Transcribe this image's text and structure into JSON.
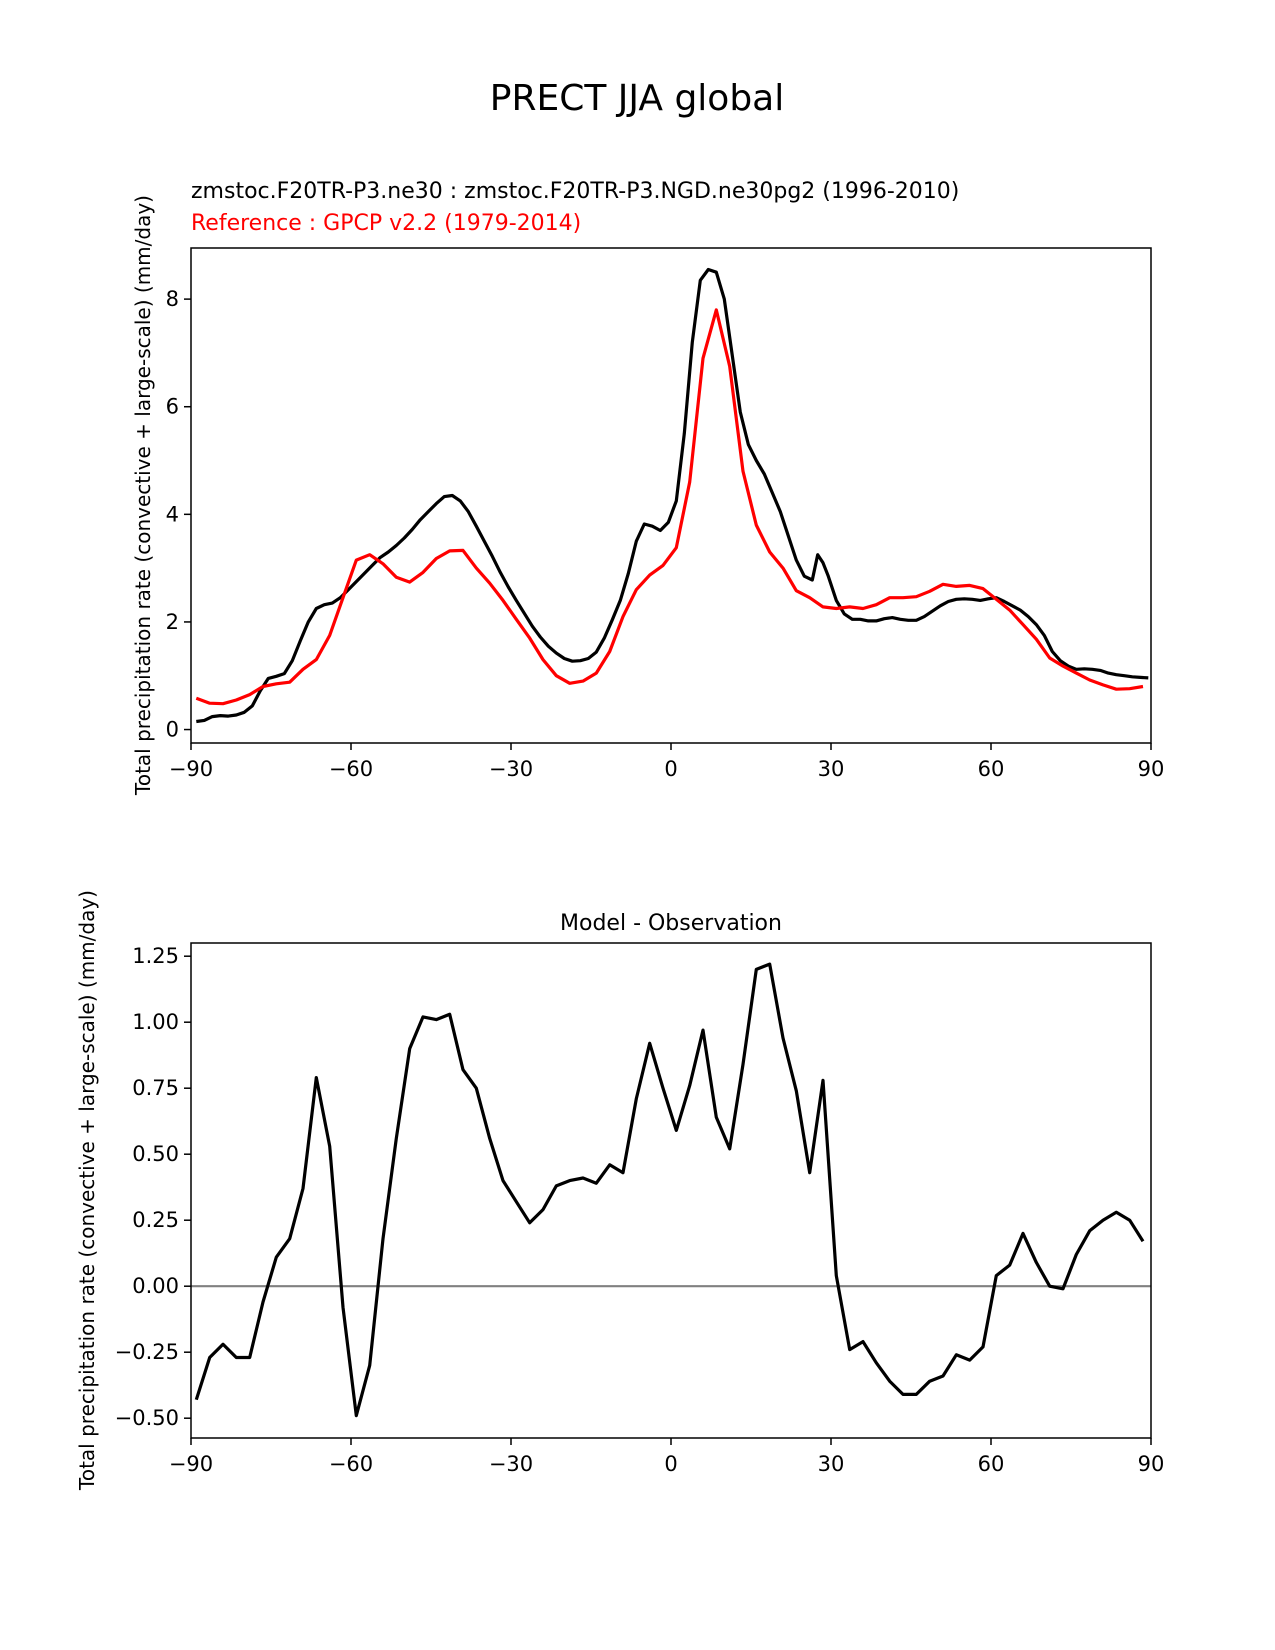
{
  "figure": {
    "title": "PRECT JJA global"
  },
  "colors": {
    "model": "#000000",
    "reference": "#ff0000",
    "zero_line": "#808080"
  },
  "chart_data": [
    {
      "type": "line",
      "title_model": "zmstoc.F20TR-P3.ne30 : zmstoc.F20TR-P3.NGD.ne30pg2 (1996-2010)",
      "title_reference": "Reference : GPCP v2.2 (1979-2014)",
      "xlabel": "",
      "ylabel": "Total precipitation rate (convective + large-scale) (mm/day)",
      "xlim": [
        -90,
        90
      ],
      "ylim": [
        -0.25,
        8.95
      ],
      "xticks": [
        -90,
        -60,
        -30,
        0,
        30,
        60,
        90
      ],
      "xtick_labels": [
        "−90",
        "−60",
        "−30",
        "0",
        "30",
        "60",
        "90"
      ],
      "yticks": [
        0,
        2,
        4,
        6,
        8
      ],
      "ytick_labels": [
        "0",
        "2",
        "4",
        "6",
        "8"
      ],
      "grid": false,
      "series": [
        {
          "x": [
            -89,
            -87.5,
            -86,
            -84.5,
            -83,
            -81.5,
            -80,
            -78.5,
            -77,
            -75.5,
            -74,
            -72.5,
            -71,
            -69.5,
            -68,
            -66.5,
            -65,
            -63.5,
            -62,
            -60.5,
            -59,
            -57.5,
            -56,
            -54.5,
            -53,
            -51.5,
            -50,
            -48.5,
            -47,
            -45.5,
            -44,
            -42.5,
            -41,
            -39.5,
            -38,
            -36.5,
            -35,
            -33.5,
            -32,
            -30.5,
            -29,
            -27.5,
            -26,
            -24.5,
            -23,
            -21.5,
            -20,
            -18.5,
            -17,
            -15.5,
            -14,
            -12.5,
            -11,
            -9.5,
            -8,
            -6.5,
            -5,
            -3.5,
            -2,
            -0.5,
            1,
            2.5,
            4,
            5.5,
            7,
            8.5,
            10,
            11.5,
            13,
            14.5,
            16,
            17.5,
            19,
            20.5,
            22,
            23.5,
            25,
            26.5,
            27.5,
            28.5,
            29.5,
            31,
            32.5,
            34,
            35.5,
            37,
            38.5,
            40,
            41.5,
            43,
            44.5,
            46,
            47.5,
            49,
            50.5,
            52,
            53.5,
            55,
            56.5,
            58,
            59.5,
            61,
            62.5,
            64,
            65.5,
            67,
            68.5,
            70,
            71.5,
            73,
            74.5,
            76,
            77.5,
            79,
            80.5,
            82,
            83.5,
            85,
            86.5,
            88,
            89.5
          ],
          "y": [
            0.15,
            0.17,
            0.24,
            0.26,
            0.25,
            0.27,
            0.32,
            0.44,
            0.72,
            0.95,
            0.99,
            1.04,
            1.28,
            1.65,
            2.0,
            2.25,
            2.32,
            2.35,
            2.45,
            2.6,
            2.75,
            2.9,
            3.05,
            3.2,
            3.3,
            3.42,
            3.56,
            3.72,
            3.9,
            4.05,
            4.2,
            4.33,
            4.35,
            4.25,
            4.05,
            3.78,
            3.5,
            3.22,
            2.92,
            2.65,
            2.4,
            2.16,
            1.92,
            1.72,
            1.55,
            1.42,
            1.32,
            1.27,
            1.28,
            1.32,
            1.44,
            1.7,
            2.04,
            2.4,
            2.9,
            3.5,
            3.82,
            3.78,
            3.7,
            3.85,
            4.25,
            5.5,
            7.2,
            8.35,
            8.55,
            8.5,
            8.0,
            6.95,
            5.9,
            5.3,
            5.0,
            4.75,
            4.4,
            4.05,
            3.6,
            3.15,
            2.85,
            2.78,
            3.25,
            3.1,
            2.85,
            2.4,
            2.15,
            2.05,
            2.05,
            2.02,
            2.02,
            2.06,
            2.08,
            2.05,
            2.03,
            2.03,
            2.1,
            2.2,
            2.3,
            2.38,
            2.42,
            2.43,
            2.42,
            2.4,
            2.43,
            2.45,
            2.38,
            2.3,
            2.22,
            2.1,
            1.95,
            1.75,
            1.45,
            1.28,
            1.18,
            1.12,
            1.13,
            1.12,
            1.1,
            1.05,
            1.02,
            1.0,
            0.98,
            0.97,
            0.96
          ]
        },
        {
          "x": [
            -89,
            -86.5,
            -84,
            -81.5,
            -79,
            -76.5,
            -74,
            -71.5,
            -69,
            -66.5,
            -64,
            -61.5,
            -59,
            -56.5,
            -54,
            -51.5,
            -49,
            -46.5,
            -44,
            -41.5,
            -39,
            -36.5,
            -34,
            -31.5,
            -29,
            -26.5,
            -24,
            -21.5,
            -19,
            -16.5,
            -14,
            -11.5,
            -9,
            -6.5,
            -4,
            -1.5,
            1,
            3.5,
            6,
            8.5,
            11,
            13.5,
            16,
            18.5,
            21,
            23.5,
            26,
            28.5,
            31,
            33.5,
            36,
            38.5,
            41,
            43.5,
            46,
            48.5,
            51,
            53.5,
            56,
            58.5,
            61,
            63.5,
            66,
            68.5,
            71,
            73.5,
            76,
            78.5,
            81,
            83.5,
            86,
            88.5
          ],
          "y": [
            0.58,
            0.49,
            0.48,
            0.55,
            0.65,
            0.8,
            0.85,
            0.88,
            1.12,
            1.3,
            1.75,
            2.45,
            3.15,
            3.25,
            3.08,
            2.83,
            2.74,
            2.92,
            3.18,
            3.32,
            3.33,
            3.0,
            2.72,
            2.4,
            2.05,
            1.7,
            1.3,
            1.0,
            0.86,
            0.9,
            1.05,
            1.45,
            2.1,
            2.6,
            2.87,
            3.05,
            3.38,
            4.6,
            6.9,
            7.8,
            6.75,
            4.8,
            3.8,
            3.3,
            3.0,
            2.58,
            2.45,
            2.28,
            2.25,
            2.28,
            2.25,
            2.32,
            2.45,
            2.45,
            2.47,
            2.57,
            2.7,
            2.66,
            2.68,
            2.62,
            2.42,
            2.22,
            1.95,
            1.68,
            1.33,
            1.18,
            1.05,
            0.92,
            0.83,
            0.75,
            0.76,
            0.8
          ]
        }
      ]
    },
    {
      "type": "line",
      "title": "Model - Observation",
      "xlabel": "",
      "ylabel": "Total precipitation rate (convective + large-scale) (mm/day)",
      "xlim": [
        -90,
        90
      ],
      "ylim": [
        -0.575,
        1.3
      ],
      "xticks": [
        -90,
        -60,
        -30,
        0,
        30,
        60,
        90
      ],
      "xtick_labels": [
        "−90",
        "−60",
        "−30",
        "0",
        "30",
        "60",
        "90"
      ],
      "yticks": [
        -0.5,
        -0.25,
        0,
        0.25,
        0.5,
        0.75,
        1.0,
        1.25
      ],
      "ytick_labels": [
        "−0.50",
        "−0.25",
        "0.00",
        "0.25",
        "0.50",
        "0.75",
        "1.00",
        "1.25"
      ],
      "zero_line": 0,
      "grid": false,
      "series": [
        {
          "x": [
            -89,
            -86.5,
            -84,
            -81.5,
            -79,
            -76.5,
            -74,
            -71.5,
            -69,
            -66.5,
            -64,
            -61.5,
            -59,
            -56.5,
            -54,
            -51.5,
            -49,
            -46.5,
            -44,
            -41.5,
            -39,
            -36.5,
            -34,
            -31.5,
            -29,
            -26.5,
            -24,
            -21.5,
            -19,
            -16.5,
            -14,
            -11.5,
            -9,
            -6.5,
            -4,
            -1.5,
            1,
            3.5,
            6,
            8.5,
            11,
            13.5,
            16,
            18.5,
            21,
            23.5,
            26,
            28.5,
            31,
            33.5,
            36,
            38.5,
            41,
            43.5,
            46,
            48.5,
            51,
            53.5,
            56,
            58.5,
            61,
            63.5,
            66,
            68.5,
            71,
            73.5,
            76,
            78.5,
            81,
            83.5,
            86,
            88.5
          ],
          "y": [
            -0.43,
            -0.27,
            -0.22,
            -0.27,
            -0.27,
            -0.06,
            0.11,
            0.18,
            0.37,
            0.79,
            0.53,
            -0.08,
            -0.49,
            -0.3,
            0.18,
            0.56,
            0.9,
            1.02,
            1.01,
            1.03,
            0.82,
            0.75,
            0.56,
            0.4,
            0.32,
            0.24,
            0.29,
            0.38,
            0.4,
            0.41,
            0.39,
            0.46,
            0.43,
            0.71,
            0.92,
            0.75,
            0.59,
            0.76,
            0.97,
            0.64,
            0.52,
            0.84,
            1.2,
            1.22,
            0.94,
            0.74,
            0.43,
            0.78,
            0.04,
            -0.24,
            -0.21,
            -0.29,
            -0.36,
            -0.41,
            -0.41,
            -0.36,
            -0.34,
            -0.26,
            -0.28,
            -0.23,
            0.04,
            0.08,
            0.2,
            0.09,
            0.0,
            -0.01,
            0.12,
            0.21,
            0.25,
            0.28,
            0.25,
            0.17
          ]
        }
      ]
    }
  ]
}
